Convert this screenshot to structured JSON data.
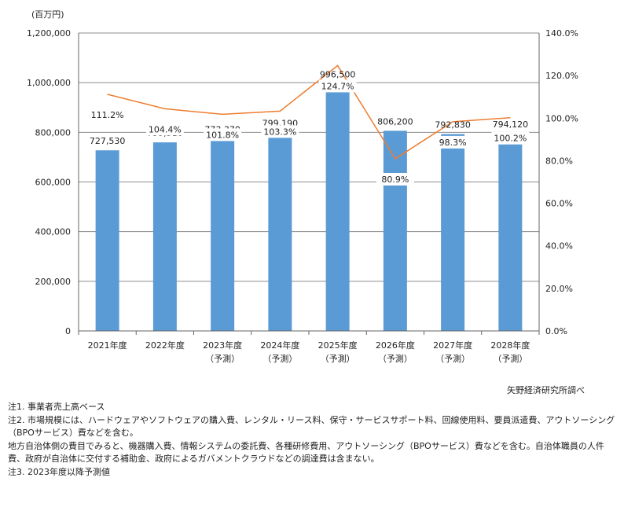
{
  "chart_data": {
    "type": "bar",
    "unit_label": "(百万円)",
    "categories": [
      [
        "2021年度"
      ],
      [
        "2022年度"
      ],
      [
        "2023年度",
        "（予測）"
      ],
      [
        "2024年度",
        "（予測）"
      ],
      [
        "2025年度",
        "（予測）"
      ],
      [
        "2026年度",
        "（予測）"
      ],
      [
        "2027年度",
        "（予測）"
      ],
      [
        "2028年度",
        "（予測）"
      ]
    ],
    "series": [
      {
        "type": "bar",
        "axis": "left",
        "color": "#5b9bd5",
        "values": [
          727530,
          759510,
          773370,
          799190,
          996500,
          806200,
          792830,
          794120
        ],
        "labels": [
          "727,530",
          "759,510",
          "773,370",
          "799,190",
          "996,500",
          "806,200",
          "792,830",
          "794,120"
        ]
      },
      {
        "type": "line",
        "axis": "right",
        "color": "#ed7d31",
        "values": [
          111.2,
          104.4,
          101.8,
          103.3,
          124.7,
          80.9,
          98.3,
          100.2
        ],
        "labels": [
          "111.2%",
          "104.4%",
          "101.8%",
          "103.3%",
          "124.7%",
          "80.9%",
          "98.3%",
          "100.2%"
        ]
      }
    ],
    "y_left": {
      "min": 0,
      "max": 1200000,
      "step": 200000,
      "ticks": [
        "0",
        "200,000",
        "400,000",
        "600,000",
        "800,000",
        "1,000,000",
        "1,200,000"
      ]
    },
    "y_right": {
      "min": 0,
      "max": 140,
      "step": 20,
      "ticks": [
        "0.0%",
        "20.0%",
        "40.0%",
        "60.0%",
        "80.0%",
        "100.0%",
        "120.0%",
        "140.0%"
      ]
    },
    "grid": true
  },
  "source": "矢野経済研究所調べ",
  "notes": [
    "注1. 事業者売上高ベース",
    "注2. 市場規模には、ハードウェアやソフトウェアの購入費、レンタル・リース料、保守・サービスサポート料、回線使用料、要員派遣費、アウトソーシング（BPOサービス）費などを含む。",
    "地方自治体側の費目でみると、機器購入費、情報システムの委託費、各種研修費用、アウトソーシング（BPOサービス）費などを含む。自治体職員の人件費、政府が自治体に交付する補助金、政府によるガバメントクラウドなどの調達費は含まない。",
    "注3. 2023年度以降予測値"
  ]
}
